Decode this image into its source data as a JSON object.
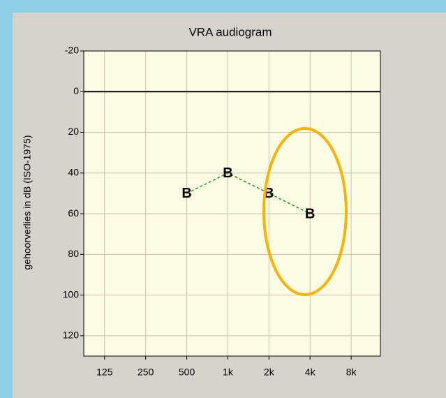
{
  "chart_data": {
    "type": "line",
    "title": "VRA audiogram",
    "y_label": "gehoorverlies in dB (ISO-1975)",
    "x": [
      500,
      1000,
      2000,
      4000
    ],
    "series": [
      {
        "name": "B",
        "color": "#1a9a1a",
        "marker": "B",
        "values": [
          50,
          40,
          50,
          60
        ]
      }
    ],
    "xscale": "log",
    "xlim": [
      88,
      13100
    ],
    "xticks": [
      125,
      250,
      500,
      {
        "value": 1000,
        "label": "1k"
      },
      {
        "value": 2000,
        "label": "2k"
      },
      {
        "value": 4000,
        "label": "4k"
      },
      {
        "value": 8000,
        "label": "8k"
      }
    ],
    "ylim": [
      -20,
      130
    ],
    "y_inverted": true,
    "yticks": [
      -20,
      0,
      20,
      40,
      60,
      80,
      100,
      120
    ],
    "grid": true,
    "hline": 0
  }
}
